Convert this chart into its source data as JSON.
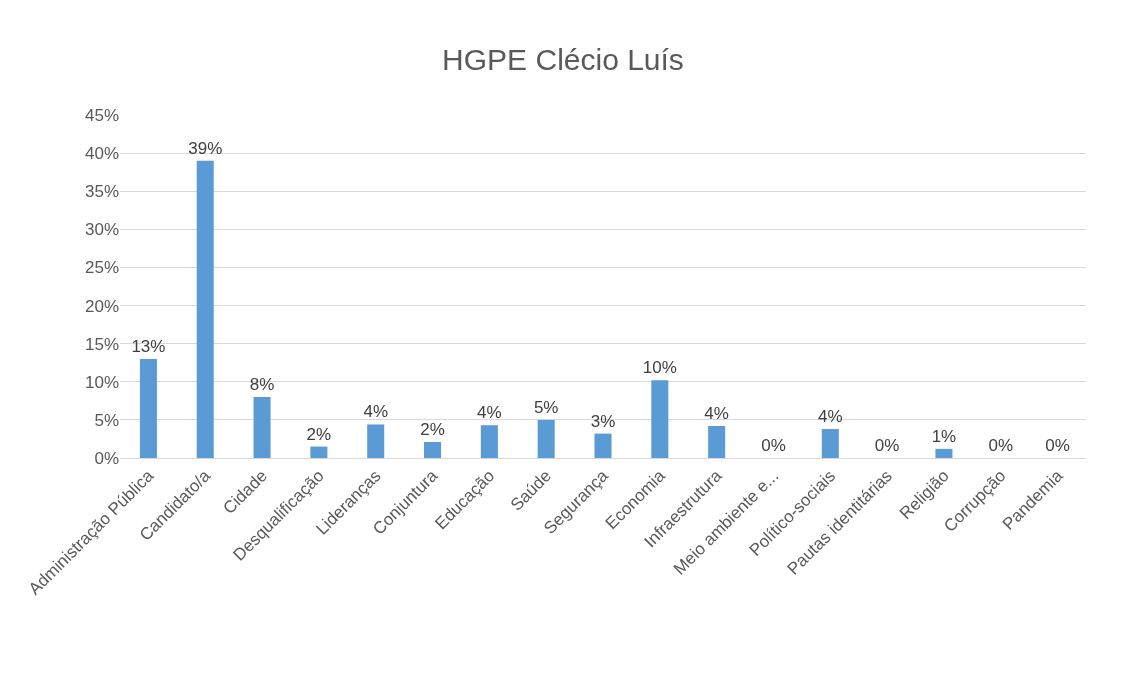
{
  "chart_data": {
    "type": "bar",
    "title": "HGPE Clécio Luís",
    "categories": [
      "Administração Pública",
      "Candidato/a",
      "Cidade",
      "Desqualificação",
      "Lideranças",
      "Conjuntura",
      "Educação",
      "Saúde",
      "Segurança",
      "Economia",
      "Infraestrutura",
      "Meio ambiente e...",
      "Político-sociais",
      "Pautas identitárias",
      "Religião",
      "Corrupção",
      "Pandemia"
    ],
    "values": [
      13,
      39,
      8,
      1.5,
      4.4,
      2.1,
      4.3,
      5,
      3.2,
      10.2,
      4.2,
      0,
      3.8,
      0,
      1.2,
      0,
      0
    ],
    "value_labels": [
      "13%",
      "39%",
      "8%",
      "2%",
      "4%",
      "2%",
      "4%",
      "5%",
      "3%",
      "10%",
      "4%",
      "0%",
      "4%",
      "0%",
      "1%",
      "0%",
      "0%"
    ],
    "color": "#5b9bd5",
    "ylim": [
      0,
      45
    ],
    "yticks": [
      {
        "value": 0,
        "label": "0%"
      },
      {
        "value": 5,
        "label": "5%"
      },
      {
        "value": 10,
        "label": "10%"
      },
      {
        "value": 15,
        "label": "15%"
      },
      {
        "value": 20,
        "label": "20%"
      },
      {
        "value": 25,
        "label": "25%"
      },
      {
        "value": 30,
        "label": "30%"
      },
      {
        "value": 35,
        "label": "35%"
      },
      {
        "value": 40,
        "label": "40%"
      },
      {
        "value": 45,
        "label": "45%"
      }
    ],
    "grid": "y"
  }
}
